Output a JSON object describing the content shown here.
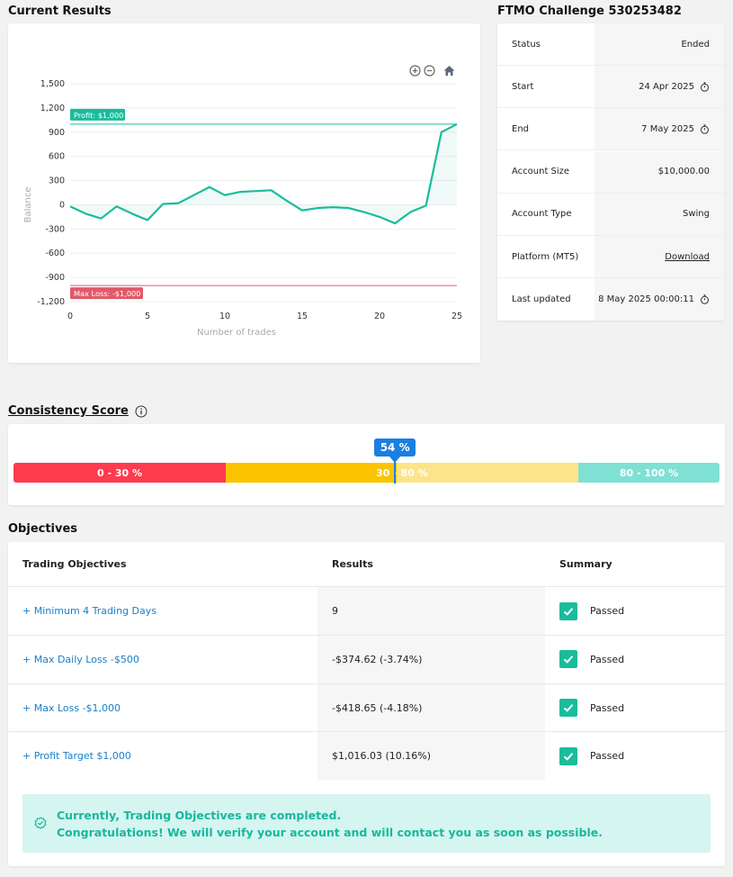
{
  "current_results": {
    "title": "Current Results",
    "chart_data": {
      "type": "line",
      "xlabel": "Number of trades",
      "ylabel": "Balance",
      "xlim": [
        0,
        25
      ],
      "ylim": [
        -1200,
        1500
      ],
      "x_ticks": [
        "0",
        "5",
        "10",
        "15",
        "20",
        "25"
      ],
      "y_ticks": [
        "1,500",
        "1,200",
        "900",
        "600",
        "300",
        "0",
        "-300",
        "-600",
        "-900",
        "-1,200"
      ],
      "x": [
        0,
        1,
        2,
        3,
        4,
        5,
        6,
        7,
        8,
        9,
        10,
        11,
        12,
        13,
        14,
        15,
        16,
        17,
        18,
        19,
        20,
        21,
        22,
        23,
        24,
        25
      ],
      "values": [
        -20,
        -110,
        -170,
        -20,
        -110,
        -190,
        10,
        20,
        120,
        220,
        120,
        160,
        170,
        180,
        50,
        -70,
        -40,
        -30,
        -40,
        -90,
        -150,
        -230,
        -90,
        -10,
        900,
        1000
      ],
      "annotations": [
        {
          "label": "Profit: $1,000",
          "y": 1000,
          "color": "#1abc9c"
        },
        {
          "label": "Max Loss: -$1,000",
          "y": -1000,
          "color": "#e05a6a"
        }
      ],
      "line_color": "#1abc9c"
    },
    "tools": [
      "zoom-in-icon",
      "zoom-out-icon",
      "home-icon"
    ]
  },
  "challenge": {
    "title": "FTMO Challenge 530253482",
    "rows": [
      {
        "label": "Status",
        "value": "Ended"
      },
      {
        "label": "Start",
        "value": "24 Apr 2025",
        "icon": "timer-icon"
      },
      {
        "label": "End",
        "value": "7 May 2025",
        "icon": "timer-icon"
      },
      {
        "label": "Account Size",
        "value": "$10,000.00"
      },
      {
        "label": "Account Type",
        "value": "Swing"
      },
      {
        "label": "Platform (MT5)",
        "value": "Download",
        "link": true
      },
      {
        "label": "Last updated",
        "value": "8 May 2025 00:00:11",
        "icon": "timer-icon"
      }
    ]
  },
  "consistency": {
    "title": "Consistency Score",
    "score": "54 %",
    "score_fraction": 0.54,
    "segments": [
      {
        "label": "0 - 30 %",
        "color": "#ff3b4e"
      },
      {
        "label": "30 - 80 %",
        "color": "#fcc400",
        "light_color": "#fde48a"
      },
      {
        "label": "80 - 100 %",
        "color": "#7fe0d4"
      }
    ]
  },
  "objectives": {
    "title": "Objectives",
    "headers": {
      "objective": "Trading Objectives",
      "results": "Results",
      "summary": "Summary"
    },
    "rows": [
      {
        "name": "+ Minimum 4 Trading Days",
        "result": "9",
        "summary": "Passed"
      },
      {
        "name": "+ Max Daily Loss -$500",
        "result": "-$374.62 (-3.74%)",
        "summary": "Passed"
      },
      {
        "name": "+ Max Loss -$1,000",
        "result": "-$418.65 (-4.18%)",
        "summary": "Passed"
      },
      {
        "name": "+ Profit Target $1,000",
        "result": "$1,016.03 (10.16%)",
        "summary": "Passed"
      }
    ],
    "success": {
      "line1": "Currently, Trading Objectives are completed.",
      "line2": "Congratulations! We will verify your account and will contact you as soon as possible."
    }
  }
}
